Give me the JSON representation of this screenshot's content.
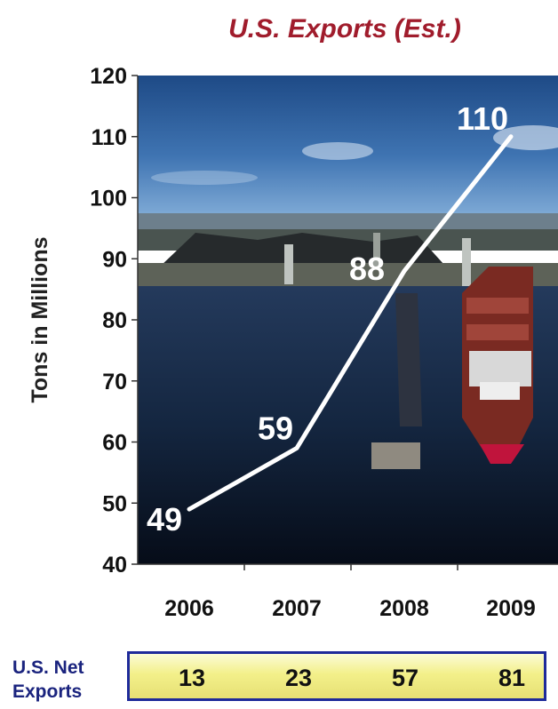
{
  "chart_data": {
    "type": "line",
    "title": "U.S. Exports (Est.)",
    "ylabel": "Tons in Millions",
    "xlabel": "",
    "categories": [
      "2006",
      "2007",
      "2008",
      "2009"
    ],
    "series": [
      {
        "values": [
          49,
          59,
          88,
          110
        ]
      }
    ],
    "ylim": [
      40,
      120
    ],
    "yticks": [
      40,
      50,
      60,
      70,
      80,
      90,
      100,
      110,
      120
    ],
    "data_labels": [
      "49",
      "59",
      "88",
      "110"
    ],
    "grid": false,
    "line_color": "#ffffff",
    "title_color": "#a01c2c",
    "background": "photo of coal ship loading at port"
  },
  "net_exports": {
    "label_line1": "U.S. Net",
    "label_line2": "Exports",
    "values": [
      "13",
      "23",
      "57",
      "81"
    ]
  }
}
